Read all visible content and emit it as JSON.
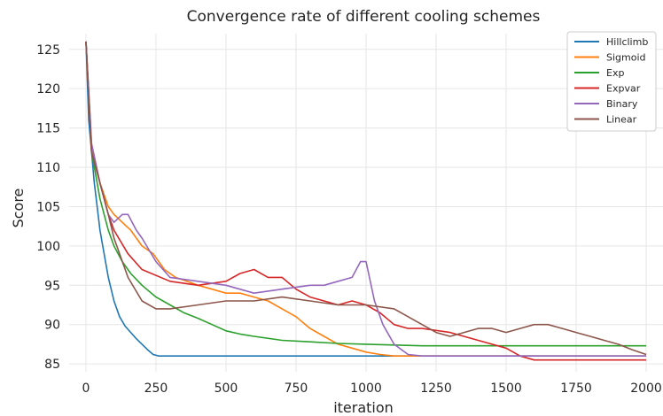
{
  "chart_data": {
    "type": "line",
    "title": "Convergence rate of different cooling schemes",
    "xlabel": "iteration",
    "ylabel": "Score",
    "xlim": [
      -60,
      2060
    ],
    "ylim": [
      84,
      127
    ],
    "xticks": [
      0,
      250,
      500,
      750,
      1000,
      1250,
      1500,
      1750,
      2000
    ],
    "yticks": [
      85,
      90,
      95,
      100,
      105,
      110,
      115,
      120,
      125
    ],
    "grid": true,
    "legend_position": "top-right",
    "series": [
      {
        "name": "Hillclimb",
        "color": "#1f77b4",
        "x": [
          0,
          10,
          20,
          30,
          40,
          50,
          60,
          80,
          100,
          120,
          140,
          160,
          180,
          200,
          220,
          240,
          260,
          300,
          500,
          1000,
          1500,
          2000
        ],
        "y": [
          126,
          116,
          112,
          108,
          105,
          102,
          100,
          96,
          93,
          91,
          89.8,
          89,
          88.2,
          87.5,
          86.8,
          86.2,
          86.0,
          86.0,
          86.0,
          86.0,
          86.0,
          86.0
        ]
      },
      {
        "name": "Sigmoid",
        "color": "#ff7f0e",
        "x": [
          0,
          20,
          50,
          80,
          100,
          130,
          160,
          200,
          240,
          280,
          320,
          360,
          400,
          450,
          500,
          550,
          600,
          650,
          700,
          750,
          800,
          850,
          900,
          950,
          1000,
          1050,
          1100,
          1200,
          1500,
          2000
        ],
        "y": [
          126,
          113,
          108,
          105,
          104,
          103,
          102,
          100,
          99,
          97,
          96,
          95.5,
          95,
          94.5,
          94,
          94,
          93.5,
          93,
          92,
          91,
          89.5,
          88.5,
          87.5,
          87,
          86.5,
          86.2,
          86.0,
          86.0,
          86.0,
          86.0
        ]
      },
      {
        "name": "Exp",
        "color": "#2ca02c",
        "x": [
          0,
          20,
          50,
          80,
          100,
          130,
          160,
          200,
          250,
          300,
          350,
          400,
          450,
          500,
          550,
          600,
          700,
          800,
          900,
          1000,
          1100,
          1200,
          1500,
          2000
        ],
        "y": [
          126,
          112,
          106,
          102,
          100,
          98,
          96.5,
          95,
          93.5,
          92.5,
          91.5,
          90.8,
          90,
          89.2,
          88.8,
          88.5,
          88,
          87.8,
          87.6,
          87.5,
          87.4,
          87.3,
          87.3,
          87.3
        ]
      },
      {
        "name": "Expvar",
        "color": "#d62728",
        "x": [
          0,
          20,
          50,
          80,
          100,
          150,
          200,
          300,
          400,
          500,
          550,
          600,
          650,
          700,
          750,
          800,
          850,
          900,
          950,
          1000,
          1050,
          1100,
          1150,
          1200,
          1300,
          1400,
          1500,
          1550,
          1600,
          1700,
          2000
        ],
        "y": [
          126,
          112,
          108,
          104,
          102,
          99,
          97,
          95.5,
          95,
          95.5,
          96.5,
          97,
          96,
          96,
          94.5,
          93.5,
          93,
          92.5,
          93,
          92.5,
          91.5,
          90,
          89.5,
          89.5,
          89,
          88,
          87,
          86,
          85.5,
          85.5,
          85.5
        ]
      },
      {
        "name": "Binary",
        "color": "#9467bd",
        "x": [
          0,
          20,
          50,
          80,
          100,
          130,
          150,
          180,
          200,
          250,
          300,
          400,
          500,
          600,
          700,
          800,
          850,
          900,
          950,
          980,
          1000,
          1030,
          1060,
          1100,
          1150,
          1200,
          1500,
          2000
        ],
        "y": [
          126,
          113,
          108,
          104,
          103,
          104,
          104,
          102,
          101,
          98,
          96,
          95.5,
          95,
          94,
          94.5,
          95,
          95,
          95.5,
          96,
          98,
          98,
          93,
          90,
          87.5,
          86.2,
          86.0,
          86.0,
          86.0
        ]
      },
      {
        "name": "Linear",
        "color": "#8c564b",
        "x": [
          0,
          20,
          50,
          80,
          100,
          150,
          200,
          250,
          300,
          400,
          500,
          600,
          700,
          800,
          900,
          1000,
          1100,
          1150,
          1200,
          1250,
          1300,
          1350,
          1400,
          1450,
          1500,
          1550,
          1600,
          1650,
          1700,
          1750,
          1800,
          1850,
          1900,
          1950,
          2000
        ],
        "y": [
          126,
          112,
          108,
          104,
          101,
          96,
          93,
          92,
          92,
          92.5,
          93,
          93,
          93.5,
          93,
          92.5,
          92.5,
          92,
          91,
          90,
          89,
          88.5,
          89,
          89.5,
          89.5,
          89,
          89.5,
          90,
          90,
          89.5,
          89,
          88.5,
          88,
          87.5,
          86.8,
          86.2
        ]
      }
    ]
  }
}
